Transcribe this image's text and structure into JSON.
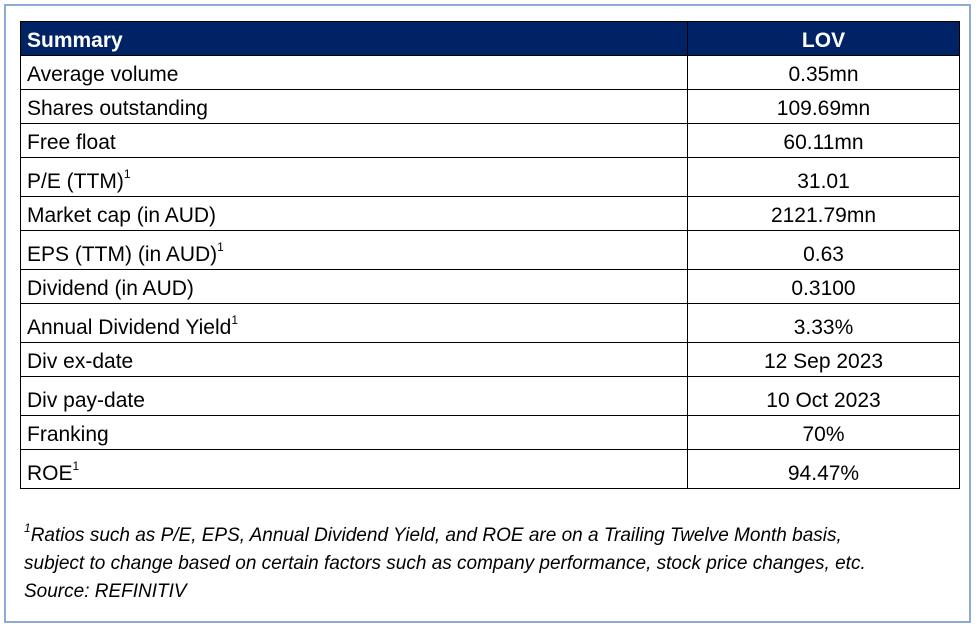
{
  "table": {
    "header": {
      "label": "Summary",
      "value": "LOV"
    },
    "rows": [
      {
        "label": "Average volume",
        "sup": "",
        "value": "0.35mn"
      },
      {
        "label": "Shares outstanding",
        "sup": "",
        "value": "109.69mn"
      },
      {
        "label": "Free float",
        "sup": "",
        "value": "60.11mn"
      },
      {
        "label": "P/E (TTM)",
        "sup": "1",
        "value": "31.01"
      },
      {
        "label": "Market cap (in AUD)",
        "sup": "",
        "value": "2121.79mn"
      },
      {
        "label": "EPS (TTM) (in AUD)",
        "sup": "1",
        "value": "0.63"
      },
      {
        "label": "Dividend (in AUD)",
        "sup": "",
        "value": "0.3100"
      },
      {
        "label": "Annual Dividend Yield",
        "sup": "1",
        "value": "3.33%"
      },
      {
        "label": "Div ex-date",
        "sup": "",
        "value": "12 Sep 2023"
      },
      {
        "label": "Div pay-date",
        "sup": "",
        "value": "10 Oct 2023"
      },
      {
        "label": "Franking",
        "sup": "",
        "value": "70%"
      },
      {
        "label": "ROE",
        "sup": "1",
        "value": "94.47%"
      }
    ]
  },
  "footnote": {
    "marker": "1",
    "line1": "Ratios such as P/E, EPS, Annual Dividend Yield, and ROE are on a Trailing Twelve Month basis,",
    "line2": "subject to change based on certain factors such as company performance, stock price changes, etc.",
    "source": "Source: REFINITIV"
  },
  "colors": {
    "header_bg": "#002366",
    "frame_border": "#8faad7"
  }
}
